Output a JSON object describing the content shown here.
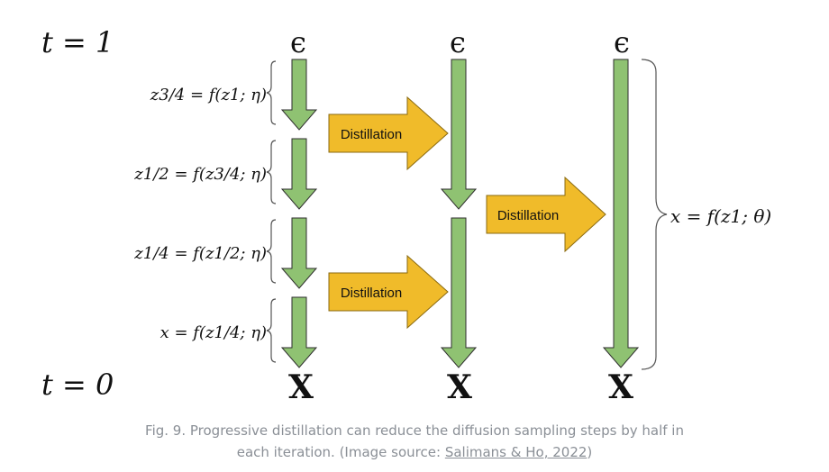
{
  "time_labels": {
    "start": "t = 1",
    "end": "t = 0"
  },
  "epsilon_symbol": "ϵ",
  "output_symbol": "X",
  "step_equations": [
    "z3/4 = f(z1; η)",
    "z1/2 = f(z3/4; η)",
    "z1/4 = f(z1/2; η)",
    "x = f(z1/4; η)"
  ],
  "final_equation": "x = f(z1; θ)",
  "distillation_label": "Distillation",
  "colors": {
    "step_arrow": "#8fc272",
    "step_arrow_stroke": "#2e2e2e",
    "distill_arrow": "#f0bb2a",
    "distill_arrow_stroke": "#8a6a10",
    "caption": "#8a8f96"
  },
  "caption": {
    "line1": "Fig. 9. Progressive distillation can reduce the diffusion sampling steps by half in",
    "line2_prefix": "each iteration. (Image source: ",
    "link_text": "Salimans & Ho, 2022",
    "line2_suffix": ")"
  }
}
